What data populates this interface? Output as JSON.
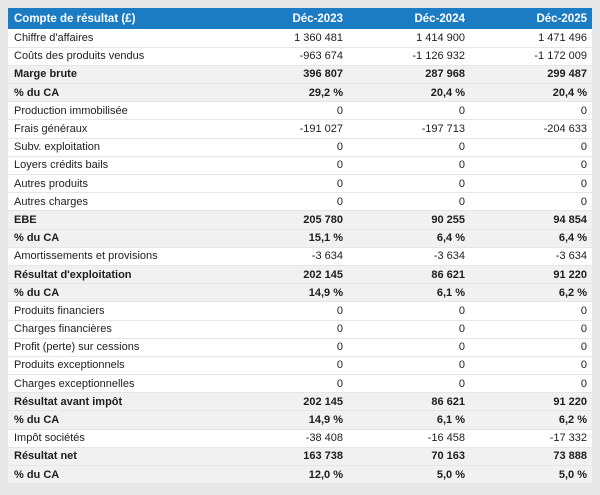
{
  "table": {
    "title": "Compte de résultat (£)",
    "columns": [
      "Déc-2023",
      "Déc-2024",
      "Déc-2025"
    ],
    "rows": [
      {
        "label": "Chiffre d'affaires",
        "values": [
          "1 360 481",
          "1 414 900",
          "1 471 496"
        ],
        "bold": false
      },
      {
        "label": "Coûts des produits vendus",
        "values": [
          "-963 674",
          "-1 126 932",
          "-1 172 009"
        ],
        "bold": false
      },
      {
        "label": "Marge brute",
        "values": [
          "396 807",
          "287 968",
          "299 487"
        ],
        "bold": true
      },
      {
        "label": "% du CA",
        "values": [
          "29,2 %",
          "20,4 %",
          "20,4 %"
        ],
        "bold": true
      },
      {
        "label": "Production immobilisée",
        "values": [
          "0",
          "0",
          "0"
        ],
        "bold": false
      },
      {
        "label": "Frais généraux",
        "values": [
          "-191 027",
          "-197 713",
          "-204 633"
        ],
        "bold": false
      },
      {
        "label": "Subv. exploitation",
        "values": [
          "0",
          "0",
          "0"
        ],
        "bold": false
      },
      {
        "label": "Loyers crédits bails",
        "values": [
          "0",
          "0",
          "0"
        ],
        "bold": false
      },
      {
        "label": "Autres produits",
        "values": [
          "0",
          "0",
          "0"
        ],
        "bold": false
      },
      {
        "label": "Autres charges",
        "values": [
          "0",
          "0",
          "0"
        ],
        "bold": false
      },
      {
        "label": "EBE",
        "values": [
          "205 780",
          "90 255",
          "94 854"
        ],
        "bold": true
      },
      {
        "label": "% du CA",
        "values": [
          "15,1 %",
          "6,4 %",
          "6,4 %"
        ],
        "bold": true
      },
      {
        "label": "Amortissements et provisions",
        "values": [
          "-3 634",
          "-3 634",
          "-3 634"
        ],
        "bold": false
      },
      {
        "label": "Résultat d'exploitation",
        "values": [
          "202 145",
          "86 621",
          "91 220"
        ],
        "bold": true
      },
      {
        "label": "% du CA",
        "values": [
          "14,9 %",
          "6,1 %",
          "6,2 %"
        ],
        "bold": true
      },
      {
        "label": "Produits financiers",
        "values": [
          "0",
          "0",
          "0"
        ],
        "bold": false
      },
      {
        "label": "Charges financières",
        "values": [
          "0",
          "0",
          "0"
        ],
        "bold": false
      },
      {
        "label": "Profit (perte) sur cessions",
        "values": [
          "0",
          "0",
          "0"
        ],
        "bold": false
      },
      {
        "label": "Produits exceptionnels",
        "values": [
          "0",
          "0",
          "0"
        ],
        "bold": false
      },
      {
        "label": "Charges exceptionnelles",
        "values": [
          "0",
          "0",
          "0"
        ],
        "bold": false
      },
      {
        "label": "Résultat avant impôt",
        "values": [
          "202 145",
          "86 621",
          "91 220"
        ],
        "bold": true
      },
      {
        "label": "% du CA",
        "values": [
          "14,9 %",
          "6,1 %",
          "6,2 %"
        ],
        "bold": true
      },
      {
        "label": "Impôt sociétés",
        "values": [
          "-38 408",
          "-16 458",
          "-17 332"
        ],
        "bold": false
      },
      {
        "label": "Résultat net",
        "values": [
          "163 738",
          "70 163",
          "73 888"
        ],
        "bold": true
      },
      {
        "label": "% du CA",
        "values": [
          "12,0 %",
          "5,0 %",
          "5,0 %"
        ],
        "bold": true
      }
    ]
  },
  "colors": {
    "header_bg": "#1b7cc4",
    "header_text": "#ffffff",
    "subtotal_bg": "#f1f1f1",
    "page_bg": "#e8e8e8",
    "body_text": "#1d1d1d"
  }
}
